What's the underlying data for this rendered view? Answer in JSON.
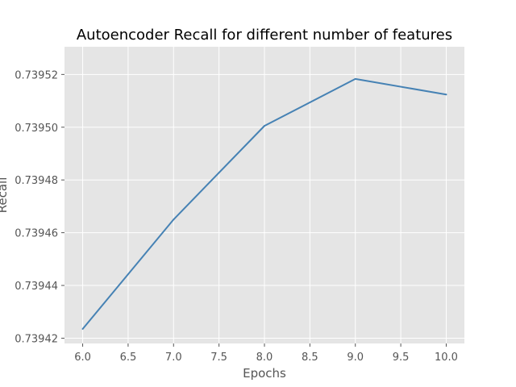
{
  "chart_data": {
    "type": "line",
    "title": "Autoencoder Recall for different number of features",
    "xlabel": "Epochs",
    "ylabel": "Recall",
    "xlim": [
      5.8,
      10.2
    ],
    "ylim": [
      0.739418,
      0.7395305
    ],
    "x_ticks": [
      "6.0",
      "6.5",
      "7.0",
      "7.5",
      "8.0",
      "8.5",
      "9.0",
      "9.5",
      "10.0"
    ],
    "y_ticks": [
      "0.73942",
      "0.73944",
      "0.73946",
      "0.73948",
      "0.73950",
      "0.73952"
    ],
    "grid": true,
    "series": [
      {
        "x": [
          6,
          7,
          8,
          9,
          10
        ],
        "y": [
          0.7394235,
          0.739465,
          0.7395005,
          0.7395183,
          0.7395124
        ],
        "color": "#4682b4"
      }
    ],
    "colors": {
      "plot_background": "#e5e5e5",
      "grid": "#ffffff",
      "line": "#4682b4"
    }
  }
}
